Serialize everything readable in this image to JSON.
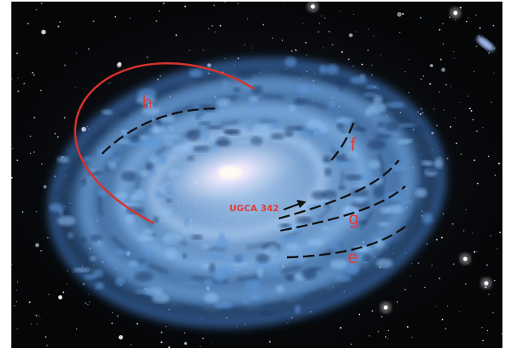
{
  "annotations": {
    "labels": {
      "h": "h",
      "f": "f",
      "g": "g",
      "e": "e"
    },
    "object_name": "UGCA 342"
  },
  "colors": {
    "arc_red": "#d8322f",
    "arc_black": "#111111",
    "label_red": "#e23b3b",
    "gas_blue": "#5f9fe0",
    "core_glow": "#fff4ea",
    "sky": "#050608"
  }
}
